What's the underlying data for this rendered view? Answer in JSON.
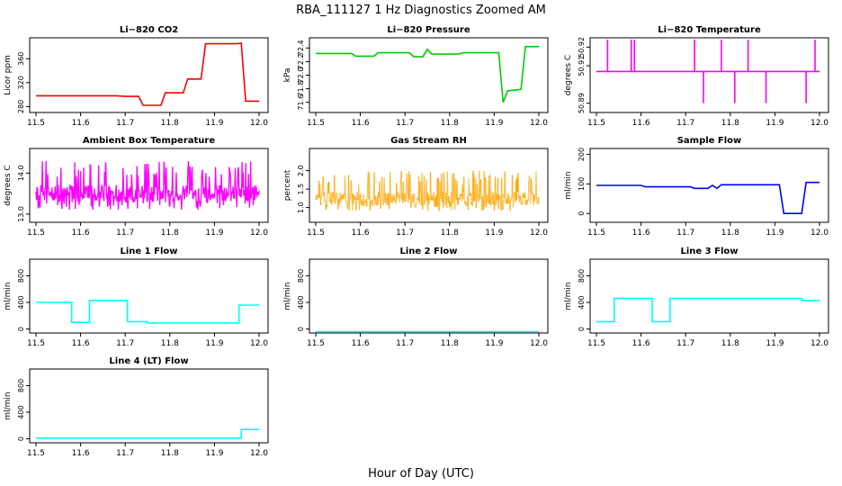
{
  "title": "RBA_111127  1 Hz Diagnostics Zoomed AM",
  "xlabel": "Hour of Day (UTC)",
  "chart_data": [
    {
      "type": "line",
      "title": "Li−820 CO2",
      "ylabel": "Licor ppm",
      "color": "#ff0000",
      "xlim": [
        11.5,
        12.0
      ],
      "ylim": [
        270,
        395
      ],
      "xticks": [
        "11.5",
        "11.6",
        "11.7",
        "11.8",
        "11.9",
        "12.0"
      ],
      "yticks": [
        "280",
        "320",
        "360"
      ],
      "series": [
        {
          "x": [
            11.5,
            11.67,
            11.68,
            11.7,
            11.73,
            11.74,
            11.78,
            11.79,
            11.83,
            11.84,
            11.87,
            11.88,
            11.93,
            11.95,
            11.96,
            11.97,
            12.0
          ],
          "y": [
            298,
            298,
            298,
            297,
            297,
            282,
            282,
            303,
            303,
            326,
            326,
            385,
            385,
            385,
            386,
            289,
            289
          ]
        }
      ]
    },
    {
      "type": "line",
      "title": "Li−820 Pressure",
      "ylabel": "kPa",
      "color": "#00cc00",
      "xlim": [
        11.5,
        12.0
      ],
      "ylim": [
        71.45,
        72.55
      ],
      "xticks": [
        "11.5",
        "11.6",
        "11.7",
        "11.8",
        "11.9",
        "12.0"
      ],
      "yticks": [
        "71.6",
        "71.8",
        "72.0",
        "72.2",
        "72.4"
      ],
      "series": [
        {
          "x": [
            11.5,
            11.58,
            11.59,
            11.63,
            11.64,
            11.71,
            11.72,
            11.74,
            11.75,
            11.76,
            11.82,
            11.83,
            11.91,
            11.92,
            11.93,
            11.96,
            11.97,
            12.0
          ],
          "y": [
            72.32,
            72.32,
            72.28,
            72.28,
            72.33,
            72.33,
            72.27,
            72.27,
            72.38,
            72.31,
            72.31,
            72.33,
            72.33,
            71.6,
            71.77,
            71.79,
            72.42,
            72.42
          ]
        }
      ]
    },
    {
      "type": "line",
      "title": "Li−820 Temperature",
      "ylabel": "degrees C",
      "color": "#ff00ff",
      "xlim": [
        11.5,
        12.0
      ],
      "ylim": [
        50.885,
        50.925
      ],
      "xticks": [
        "11.5",
        "11.6",
        "11.7",
        "11.8",
        "11.9",
        "12.0"
      ],
      "yticks": [
        "50.89",
        "50.91",
        "50.92"
      ],
      "series": [
        {
          "x": [
            11.5,
            11.525,
            11.525,
            11.525,
            11.578,
            11.578,
            11.578,
            11.585,
            11.585,
            11.585,
            11.72,
            11.72,
            11.72,
            11.74,
            11.74,
            11.74,
            11.78,
            11.78,
            11.78,
            11.81,
            11.81,
            11.81,
            11.84,
            11.84,
            11.84,
            11.88,
            11.88,
            11.88,
            11.97,
            11.97,
            11.97,
            11.99,
            11.99,
            11.99,
            12.0
          ],
          "y": [
            50.907,
            50.907,
            50.924,
            50.907,
            50.907,
            50.924,
            50.907,
            50.907,
            50.924,
            50.907,
            50.907,
            50.924,
            50.907,
            50.907,
            50.89,
            50.907,
            50.907,
            50.924,
            50.907,
            50.907,
            50.89,
            50.907,
            50.907,
            50.924,
            50.907,
            50.907,
            50.89,
            50.907,
            50.907,
            50.89,
            50.907,
            50.907,
            50.924,
            50.907,
            50.907
          ]
        }
      ]
    },
    {
      "type": "line",
      "title": "Ambient Box Temperature",
      "ylabel": "degrees C",
      "color": "#ff00ff",
      "xlim": [
        11.5,
        12.0
      ],
      "ylim": [
        12.8,
        14.6
      ],
      "xticks": [
        "11.5",
        "11.6",
        "11.7",
        "11.8",
        "11.9",
        "12.0"
      ],
      "yticks": [
        "13.0",
        "14.0"
      ],
      "series": [
        {
          "x": [
            11.5,
            12.0
          ],
          "y": [
            13.5,
            13.5
          ],
          "band": [
            13.1,
            14.3
          ]
        }
      ]
    },
    {
      "type": "scatter",
      "title": "Gas Stream RH",
      "ylabel": "percent",
      "color": "#ffa500",
      "xlim": [
        11.5,
        12.0
      ],
      "ylim": [
        0.6,
        2.6
      ],
      "xticks": [
        "11.5",
        "11.6",
        "11.7",
        "11.8",
        "11.9",
        "12.0"
      ],
      "yticks": [
        "1.0",
        "1.5",
        "2.0"
      ],
      "series": [
        {
          "x": [
            11.5,
            12.0
          ],
          "y": [
            1.25,
            1.25
          ],
          "band": [
            0.9,
            2.0
          ]
        }
      ]
    },
    {
      "type": "line",
      "title": "Sample Flow",
      "ylabel": "ml/min",
      "color": "#0000ff",
      "xlim": [
        11.5,
        12.0
      ],
      "ylim": [
        -30,
        220
      ],
      "xticks": [
        "11.5",
        "11.6",
        "11.7",
        "11.8",
        "11.9",
        "12.0"
      ],
      "yticks": [
        "0",
        "100",
        "200"
      ],
      "series": [
        {
          "x": [
            11.5,
            11.6,
            11.61,
            11.71,
            11.72,
            11.75,
            11.76,
            11.77,
            11.78,
            11.91,
            11.92,
            11.96,
            11.97,
            12.0
          ],
          "y": [
            95,
            95,
            90,
            90,
            85,
            85,
            95,
            85,
            97,
            97,
            0,
            0,
            105,
            105
          ]
        }
      ]
    },
    {
      "type": "line",
      "title": "Line 1 Flow",
      "ylabel": "ml/min",
      "color": "#00ffff",
      "xlim": [
        11.5,
        12.0
      ],
      "ylim": [
        -60,
        1050
      ],
      "xticks": [
        "11.5",
        "11.6",
        "11.7",
        "11.8",
        "11.9",
        "12.0"
      ],
      "yticks": [
        "0",
        "400",
        "800"
      ],
      "series": [
        {
          "x": [
            11.5,
            11.58,
            11.58,
            11.62,
            11.62,
            11.705,
            11.705,
            11.75,
            11.75,
            11.955,
            11.955,
            12.0
          ],
          "y": [
            400,
            400,
            100,
            100,
            430,
            430,
            110,
            110,
            90,
            90,
            360,
            360
          ]
        }
      ]
    },
    {
      "type": "line",
      "title": "Line 2 Flow",
      "ylabel": "ml/min",
      "color": "#00ffff",
      "xlim": [
        11.5,
        12.0
      ],
      "ylim": [
        -60,
        1050
      ],
      "xticks": [
        "11.5",
        "11.6",
        "11.7",
        "11.8",
        "11.9",
        "12.0"
      ],
      "yticks": [
        "0",
        "400",
        "800"
      ],
      "series": [
        {
          "x": [
            11.5,
            12.0
          ],
          "y": [
            -40,
            -40
          ]
        }
      ]
    },
    {
      "type": "line",
      "title": "Line 3 Flow",
      "ylabel": "ml/min",
      "color": "#00ffff",
      "xlim": [
        11.5,
        12.0
      ],
      "ylim": [
        -60,
        1050
      ],
      "xticks": [
        "11.5",
        "11.6",
        "11.7",
        "11.8",
        "11.9",
        "12.0"
      ],
      "yticks": [
        "0",
        "400",
        "800"
      ],
      "series": [
        {
          "x": [
            11.5,
            11.54,
            11.54,
            11.625,
            11.625,
            11.665,
            11.665,
            11.96,
            11.96,
            12.0
          ],
          "y": [
            110,
            110,
            460,
            460,
            110,
            110,
            460,
            460,
            430,
            430
          ]
        }
      ]
    },
    {
      "type": "line",
      "title": "Line 4 (LT) Flow",
      "ylabel": "ml/min",
      "color": "#00ffff",
      "xlim": [
        11.5,
        12.0
      ],
      "ylim": [
        -60,
        1050
      ],
      "xticks": [
        "11.5",
        "11.6",
        "11.7",
        "11.8",
        "11.9",
        "12.0"
      ],
      "yticks": [
        "0",
        "400",
        "800"
      ],
      "series": [
        {
          "x": [
            11.5,
            11.96,
            11.96,
            12.0
          ],
          "y": [
            10,
            10,
            140,
            140
          ]
        }
      ]
    }
  ]
}
